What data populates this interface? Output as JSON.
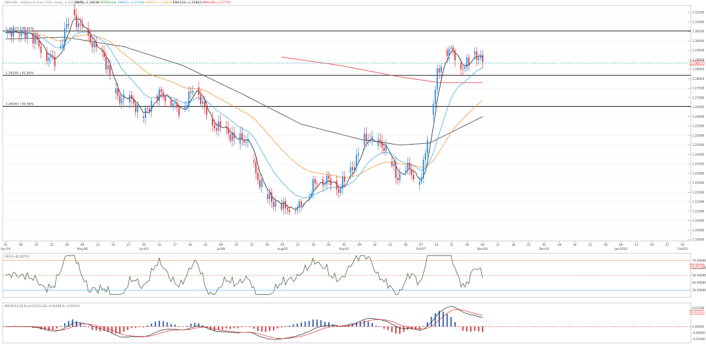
{
  "header": {
    "symbol": "GBPUSD - HotGame from (5%), Daily, 4.150 / 0.50",
    "indicators": [
      {
        "text": "SMA5=1.28038",
        "color": "#222222"
      },
      {
        "text": "AP50Imda",
        "color": "#2c9e2c"
      },
      {
        "text": "EMA21=1.27644",
        "color": "#3a9bd8"
      },
      {
        "text": "EMA55=1.26810",
        "color": "#f0a040"
      },
      {
        "text": "EMA144=1.25983",
        "color": "#222222"
      },
      {
        "text": "SMA200=1.27701",
        "color": "#e03030"
      }
    ]
  },
  "price_axis": {
    "ticks": [
      "1.31500",
      "1.31000",
      "1.30500",
      "1.30000",
      "1.29500",
      "1.29000",
      "1.28500",
      "1.28000",
      "1.27500",
      "1.27000",
      "1.26500",
      "1.26000",
      "1.25500",
      "1.25000",
      "1.24500",
      "1.24000",
      "1.23500",
      "1.23000",
      "1.22500",
      "1.22000",
      "1.21500",
      "1.21000",
      "1.20500",
      "1.20000",
      "1.19500"
    ],
    "current_price": "1.28825"
  },
  "levels": [
    {
      "label": "1.30525 | 76.40%",
      "value": 1.3053
    },
    {
      "label": "1.28185 | 61.80%",
      "value": 1.28185
    },
    {
      "label": "1.26543 | 50.00%",
      "value": 1.26543
    }
  ],
  "date_axis": {
    "day_labels": [
      "01",
      "08",
      "15",
      "22",
      "29",
      "06",
      "13",
      "20",
      "27",
      "03",
      "10",
      "17",
      "24",
      "01",
      "08",
      "15",
      "22",
      "29",
      "05",
      "12",
      "19",
      "26",
      "02",
      "09",
      "16",
      "23",
      "30",
      "07",
      "14",
      "21",
      "28",
      "04",
      "11",
      "18",
      "25",
      "02",
      "09",
      "16",
      "23",
      "30",
      "06",
      "13",
      "20",
      "27",
      "03"
    ],
    "month_labels": [
      {
        "text": "Apr/19",
        "at": 0
      },
      {
        "text": "May/06",
        "at": 5
      },
      {
        "text": "Jun/03",
        "at": 9
      },
      {
        "text": "Jul/08",
        "at": 14
      },
      {
        "text": "Aug/05",
        "at": 18
      },
      {
        "text": "Sep/02",
        "at": 22
      },
      {
        "text": "Oct/07",
        "at": 27
      },
      {
        "text": "Nov/04",
        "at": 31
      },
      {
        "text": "Dec/02",
        "at": 35
      },
      {
        "text": "Jan/2020",
        "at": 40
      },
      {
        "text": "Feb/03",
        "at": 44
      }
    ]
  },
  "rsi_panel": {
    "label": "RSI14=62.85703",
    "ticks": [
      "70.00000",
      "60.00000",
      "50.00000",
      "40.00000",
      "30.00000"
    ],
    "value_badge": "62.85703"
  },
  "macd_panel": {
    "label": "MACD(12,26,9)=0.01151 SIG=0.01284 H=-0.00133",
    "ticks": [
      "0.01500",
      "0.01151",
      "0.00000",
      "-0.00500",
      "-0.01000"
    ],
    "value_badge": "0.01151"
  },
  "colors": {
    "up": "#2a8ee0",
    "down": "#e0383e",
    "sma5": "#222222",
    "ema21": "#5ab2e8",
    "ema55": "#f2a24a",
    "ema144": "#555555",
    "sma200": "#e05050",
    "level_line": "#111111",
    "rsi": "#4d6b52",
    "macd_line": "#222222",
    "macd_signal": "#d03030",
    "hist_pos": "#2a5ca8",
    "hist_neg": "#d03030",
    "dashed": "#3aa0a0"
  },
  "chart_data": {
    "type": "candlestick",
    "symbol": "GBPUSD",
    "timeframe": "Daily",
    "ylim": [
      1.195,
      1.318
    ],
    "y_tick_step": 0.005,
    "bars": 158,
    "close_path": [
      [
        0,
        1.303
      ],
      [
        5,
        1.304
      ],
      [
        10,
        1.306
      ],
      [
        14,
        1.3005
      ],
      [
        18,
        1.296
      ],
      [
        22,
        1.2925
      ],
      [
        25,
        1.289
      ],
      [
        28,
        1.296
      ],
      [
        31,
        1.309
      ],
      [
        34,
        1.316
      ],
      [
        37,
        1.307
      ],
      [
        41,
        1.304
      ],
      [
        45,
        1.2985
      ],
      [
        49,
        1.292
      ],
      [
        52,
        1.284
      ],
      [
        55,
        1.276
      ],
      [
        58,
        1.27
      ],
      [
        62,
        1.269
      ],
      [
        66,
        1.266
      ],
      [
        70,
        1.2615
      ],
      [
        73,
        1.264
      ],
      [
        76,
        1.27
      ],
      [
        79,
        1.274
      ],
      [
        82,
        1.27
      ],
      [
        86,
        1.264
      ],
      [
        89,
        1.262
      ],
      [
        92,
        1.27
      ],
      [
        95,
        1.275
      ],
      [
        98,
        1.27
      ],
      [
        101,
        1.264
      ],
      [
        104,
        1.258
      ],
      [
        107,
        1.254
      ],
      [
        110,
        1.253
      ],
      [
        114,
        1.251
      ],
      [
        117,
        1.249
      ],
      [
        120,
        1.247
      ],
      [
        124,
        1.244
      ],
      [
        127,
        1.231
      ],
      [
        130,
        1.224
      ],
      [
        133,
        1.216
      ],
      [
        136,
        1.214
      ],
      [
        139,
        1.2165
      ],
      [
        142,
        1.212
      ],
      [
        145,
        1.209
      ],
      [
        148,
        1.212
      ],
      [
        151,
        1.217
      ],
      [
        154,
        1.219
      ],
      [
        157,
        1.224
      ],
      [
        160,
        1.224
      ],
      [
        163,
        1.229
      ],
      [
        166,
        1.224
      ],
      [
        169,
        1.219
      ],
      [
        172,
        1.227
      ],
      [
        175,
        1.233
      ],
      [
        178,
        1.237
      ],
      [
        181,
        1.245
      ],
      [
        184,
        1.249
      ],
      [
        187,
        1.248
      ],
      [
        190,
        1.246
      ],
      [
        193,
        1.24
      ],
      [
        196,
        1.235
      ],
      [
        199,
        1.229
      ],
      [
        202,
        1.232
      ],
      [
        205,
        1.231
      ],
      [
        208,
        1.226
      ],
      [
        211,
        1.229
      ],
      [
        213,
        1.243
      ],
      [
        216,
        1.259
      ],
      [
        219,
        1.282
      ],
      [
        222,
        1.292
      ],
      [
        225,
        1.297
      ],
      [
        228,
        1.29
      ],
      [
        230,
        1.285
      ],
      [
        233,
        1.288
      ],
      [
        236,
        1.293
      ],
      [
        239,
        1.291
      ],
      [
        242,
        1.288
      ]
    ],
    "ema144_path": [
      [
        0,
        1.301
      ],
      [
        30,
        1.302
      ],
      [
        60,
        1.297
      ],
      [
        90,
        1.287
      ],
      [
        120,
        1.272
      ],
      [
        150,
        1.256
      ],
      [
        180,
        1.248
      ],
      [
        200,
        1.245
      ],
      [
        215,
        1.246
      ],
      [
        242,
        1.26
      ]
    ],
    "sma200_path": [
      [
        140,
        1.2915
      ],
      [
        170,
        1.287
      ],
      [
        200,
        1.281
      ],
      [
        220,
        1.278
      ],
      [
        242,
        1.278
      ]
    ]
  }
}
